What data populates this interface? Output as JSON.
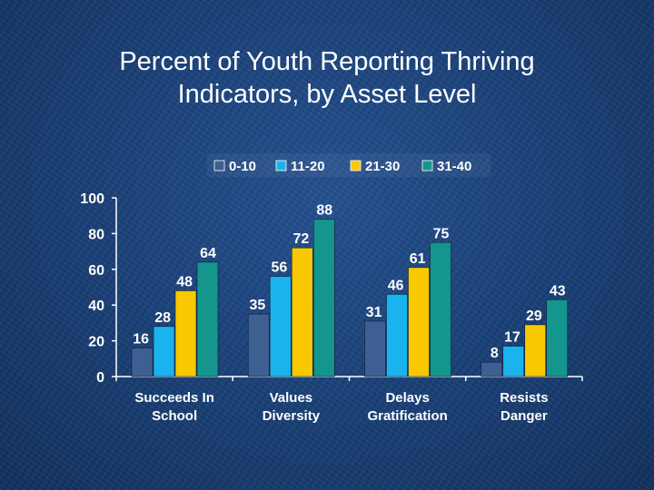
{
  "slide": {
    "title_line1": "Percent of Youth Reporting Thriving",
    "title_line2": "Indicators, by Asset Level"
  },
  "chart_data": {
    "type": "bar",
    "title": "Percent of Youth Reporting Thriving Indicators, by Asset Level",
    "categories": [
      [
        "Succeeds In",
        "School"
      ],
      [
        "Values",
        "Diversity"
      ],
      [
        "Delays",
        "Gratification"
      ],
      [
        "Resists",
        "Danger"
      ]
    ],
    "series": [
      {
        "name": "0-10",
        "color": "#3d5f92",
        "values": [
          16,
          35,
          31,
          8
        ]
      },
      {
        "name": "11-20",
        "color": "#1ab3ee",
        "values": [
          28,
          56,
          46,
          17
        ]
      },
      {
        "name": "21-30",
        "color": "#f8c800",
        "values": [
          48,
          72,
          61,
          29
        ]
      },
      {
        "name": "31-40",
        "color": "#14958e",
        "values": [
          64,
          88,
          75,
          43
        ]
      }
    ],
    "ylim": [
      0,
      100
    ],
    "yticks": [
      0,
      20,
      40,
      60,
      80,
      100
    ],
    "xlabel": "",
    "ylabel": "",
    "grid": false,
    "legend": "top-center"
  }
}
